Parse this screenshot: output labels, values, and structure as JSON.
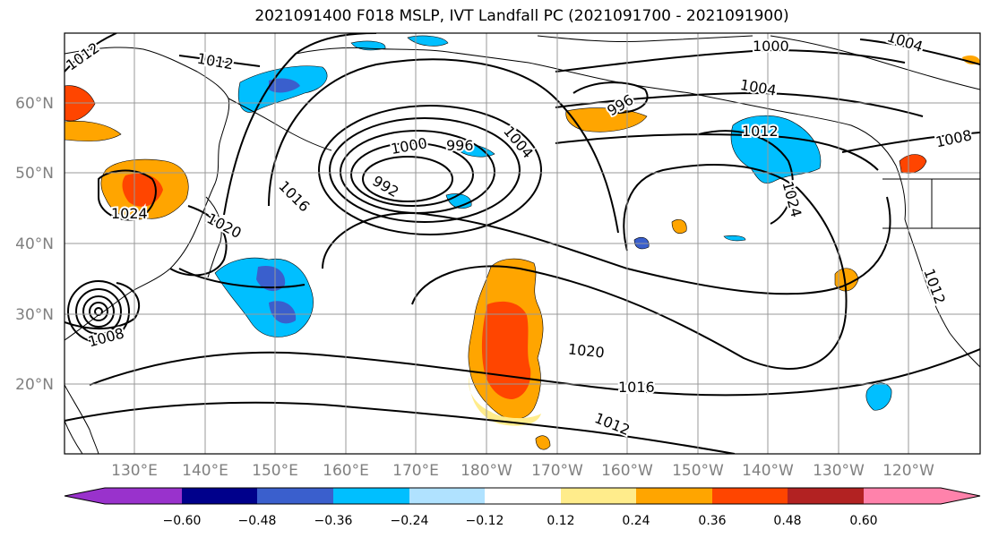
{
  "title": "2021091400 F018 MSLP, IVT Landfall PC (2021091700 - 2021091900)",
  "map": {
    "lat_labels": [
      "60°N",
      "50°N",
      "40°N",
      "30°N",
      "20°N"
    ],
    "lon_labels": [
      "130°E",
      "140°E",
      "150°E",
      "160°E",
      "170°E",
      "180°W",
      "170°W",
      "160°W",
      "150°W",
      "140°W",
      "130°W",
      "120°W"
    ],
    "grid_color": "#999999",
    "tick_label_color": "#808080",
    "contour_labels": [
      "1012",
      "1012",
      "1000",
      "1004",
      "1000",
      "996",
      "1004",
      "992",
      "996",
      "1012",
      "1004",
      "1008",
      "1024",
      "1016",
      "1020",
      "1024",
      "1008",
      "1020",
      "1016",
      "1012",
      "1012"
    ]
  },
  "colorbar": {
    "colors": [
      "#9932cc",
      "#00008b",
      "#3a5fcd",
      "#00bfff",
      "#b0e2ff",
      "#ffffff",
      "#ffec8b",
      "#ffa500",
      "#ff4500",
      "#b22222",
      "#ff82ab"
    ],
    "ticks": [
      "−0.60",
      "−0.48",
      "−0.36",
      "−0.24",
      "−0.12",
      "0.12",
      "0.24",
      "0.36",
      "0.48",
      "0.60"
    ]
  }
}
